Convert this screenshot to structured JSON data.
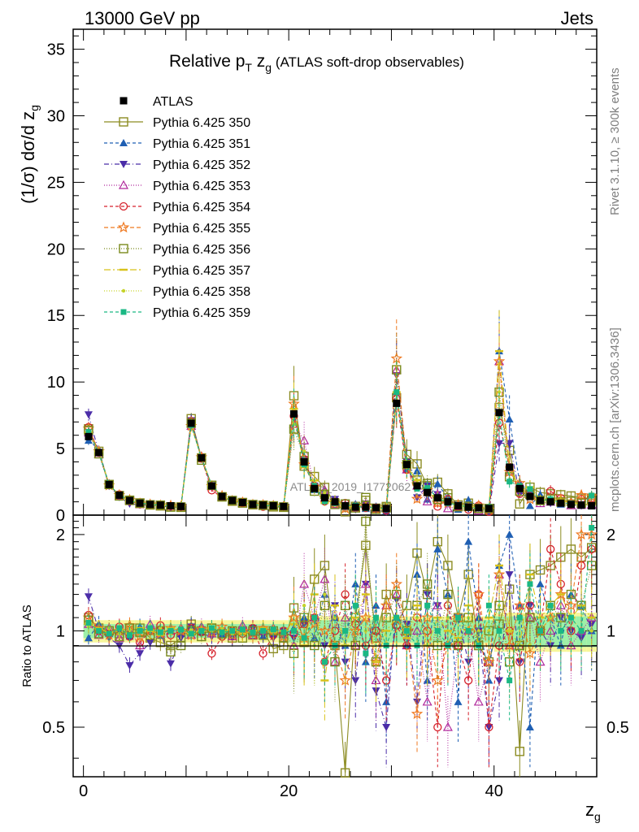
{
  "header": {
    "left": "13000 GeV pp",
    "right": "Jets"
  },
  "side_labels": {
    "rivet": "Rivet 3.1.10, ≥ 300k events",
    "mcplots": "mcplots.cern.ch [arXiv:1306.3436]"
  },
  "watermark": "ATLAS_2019_I1772062",
  "chart_data": {
    "type": "scatter",
    "title": "Relative p_T z_g (ATLAS soft-drop observables)",
    "title_parts": {
      "pre": "Relative p",
      "sub1": "T",
      "mid": " z",
      "sub2": "g",
      "post": " (ATLAS soft-drop observables)"
    },
    "xlabel": "z_g",
    "xlabel_parts": {
      "main": "z",
      "sub": "g"
    },
    "ylabel": "(1/σ) dσ/d z_g",
    "ylabel_parts": {
      "main": "(1/σ) dσ/d z",
      "sub": "g"
    },
    "ratio_ylabel": "Ratio to ATLAS",
    "xlim": [
      -1,
      50
    ],
    "ylim": [
      0,
      36.5
    ],
    "ratio_ylim": [
      0.35,
      2.3
    ],
    "xticks": [
      "0",
      "20",
      "40"
    ],
    "yticks": [
      "0",
      "5",
      "10",
      "15",
      "20",
      "25",
      "30",
      "35"
    ],
    "ratio_yticks": [
      "0.5",
      "1",
      "2"
    ],
    "legend_position": "top-left",
    "reference": {
      "name": "ATLAS",
      "x": [
        0.5,
        1.5,
        2.5,
        3.5,
        4.5,
        5.5,
        6.5,
        7.5,
        8.5,
        9.5,
        10.5,
        11.5,
        12.5,
        13.5,
        14.5,
        15.5,
        16.5,
        17.5,
        18.5,
        19.5,
        20.5,
        21.5,
        22.5,
        23.5,
        24.5,
        25.5,
        26.5,
        27.5,
        28.5,
        29.5,
        30.5,
        31.5,
        32.5,
        33.5,
        34.5,
        35.5,
        36.5,
        37.5,
        38.5,
        39.5,
        40.5,
        41.5,
        42.5,
        43.5,
        44.5,
        45.5,
        46.5,
        47.5,
        48.5,
        49.5
      ],
      "y": [
        5.9,
        4.7,
        2.3,
        1.5,
        1.1,
        0.9,
        0.8,
        0.75,
        0.7,
        0.65,
        6.9,
        4.3,
        2.2,
        1.4,
        1.1,
        0.95,
        0.8,
        0.75,
        0.7,
        0.65,
        7.6,
        4.0,
        2.0,
        1.3,
        1.0,
        0.7,
        0.6,
        0.6,
        0.55,
        0.5,
        8.4,
        3.8,
        2.2,
        1.7,
        1.3,
        1.0,
        0.7,
        0.6,
        0.55,
        0.5,
        7.7,
        3.6,
        2.0,
        1.4,
        1.1,
        1.0,
        0.9,
        0.8,
        0.75,
        0.7
      ]
    },
    "series": [
      {
        "name": "Pythia 6.425 350",
        "color": "#8c8c22",
        "marker": "open-square",
        "dash": "",
        "ratio": [
          1.1,
          1.02,
          1.0,
          0.98,
          1.0,
          1.02,
          0.95,
          0.92,
          0.9,
          0.95,
          1.05,
          1.0,
          1.02,
          0.98,
          0.95,
          1.0,
          0.97,
          1.0,
          0.88,
          0.9,
          1.18,
          0.92,
          1.45,
          1.6,
          0.9,
          0.36,
          1.1,
          1.85,
          0.95,
          1.3,
          1.05,
          1.2,
          1.75,
          1.3,
          1.9,
          1.6,
          1.1,
          1.5,
          0.9,
          0.8,
          1.05,
          1.35,
          0.42,
          1.5,
          1.55,
          1.6,
          1.7,
          1.8,
          1.7,
          1.82
        ]
      },
      {
        "name": "Pythia 6.425 351",
        "color": "#1f5fb3",
        "marker": "triangle-up",
        "dash": "4,3",
        "ratio": [
          0.95,
          1.05,
          0.98,
          1.0,
          0.96,
          1.03,
          1.0,
          0.97,
          1.02,
          0.98,
          1.04,
          0.99,
          1.01,
          0.97,
          1.0,
          1.02,
          0.98,
          0.96,
          1.0,
          0.97,
          1.02,
          1.1,
          0.95,
          1.3,
          1.1,
          0.9,
          1.4,
          0.8,
          1.2,
          0.6,
          1.1,
          0.9,
          1.5,
          0.7,
          1.8,
          1.3,
          0.6,
          1.9,
          1.1,
          0.7,
          1.6,
          2.0,
          1.2,
          0.5,
          1.4,
          1.1,
          0.9,
          1.3,
          1.2,
          1.0
        ]
      },
      {
        "name": "Pythia 6.425 352",
        "color": "#4b2da8",
        "marker": "triangle-down",
        "dash": "6,3,1,3",
        "ratio": [
          1.28,
          1.0,
          0.95,
          0.9,
          0.78,
          0.85,
          0.92,
          1.0,
          0.79,
          0.95,
          1.03,
          0.98,
          0.96,
          1.0,
          0.95,
          0.99,
          1.02,
          0.97,
          0.95,
          1.0,
          0.95,
          1.05,
          1.1,
          0.9,
          1.2,
          0.8,
          0.7,
          1.4,
          0.65,
          0.5,
          1.25,
          1.05,
          0.6,
          1.3,
          1.2,
          0.9,
          1.1,
          0.8,
          1.0,
          0.5,
          0.7,
          1.5,
          0.8,
          1.2,
          1.0,
          0.9,
          1.1,
          1.0,
          0.95,
          1.05
        ]
      },
      {
        "name": "Pythia 6.425 353",
        "color": "#b0289c",
        "marker": "open-triangle-up",
        "dash": "1,2",
        "ratio": [
          1.05,
          0.97,
          1.02,
          0.95,
          1.0,
          0.9,
          1.05,
          0.98,
          1.0,
          1.02,
          0.97,
          1.03,
          0.98,
          1.0,
          0.96,
          1.04,
          0.97,
          1.0,
          1.02,
          0.98,
          0.9,
          1.4,
          1.1,
          1.45,
          0.8,
          1.1,
          0.9,
          1.4,
          0.7,
          1.2,
          1.3,
          0.9,
          1.0,
          0.6,
          1.2,
          0.5,
          0.9,
          1.0,
          0.6,
          0.8,
          1.5,
          0.9,
          1.2,
          1.1,
          0.8,
          1.0,
          1.2,
          0.9,
          1.0,
          1.1
        ]
      },
      {
        "name": "Pythia 6.425 354",
        "color": "#d6222c",
        "marker": "open-circle",
        "dash": "4,3",
        "ratio": [
          1.12,
          1.0,
          0.98,
          1.03,
          0.96,
          0.92,
          1.0,
          1.04,
          0.97,
          1.0,
          1.02,
          0.99,
          0.85,
          0.96,
          1.0,
          0.98,
          1.02,
          0.85,
          0.97,
          1.0,
          0.98,
          1.05,
          1.1,
          0.8,
          1.0,
          1.3,
          1.05,
          0.9,
          1.0,
          0.7,
          1.04,
          0.9,
          1.1,
          1.0,
          0.5,
          1.2,
          0.9,
          0.7,
          1.3,
          0.5,
          0.9,
          1.0,
          0.8,
          1.2,
          1.0,
          1.8,
          1.4,
          1.0,
          1.6,
          1.8
        ]
      },
      {
        "name": "Pythia 6.425 355",
        "color": "#ef7a22",
        "marker": "open-star",
        "dash": "5,3",
        "ratio": [
          1.1,
          1.02,
          0.97,
          1.0,
          1.04,
          0.96,
          1.0,
          0.98,
          1.02,
          1.0,
          0.97,
          1.01,
          0.99,
          1.03,
          0.97,
          1.0,
          0.98,
          1.02,
          1.0,
          0.96,
          1.1,
          0.95,
          1.05,
          1.0,
          0.9,
          0.7,
          1.0,
          1.1,
          0.8,
          1.2,
          1.4,
          1.0,
          0.55,
          1.1,
          0.7,
          0.9,
          1.1,
          1.0,
          1.3,
          0.8,
          1.5,
          0.9,
          1.2,
          0.85,
          1.0,
          1.1,
          1.3,
          1.2,
          2.0,
          2.0
        ]
      },
      {
        "name": "Pythia 6.425 356",
        "color": "#7a8a1c",
        "marker": "open-square",
        "dash": "1,2",
        "ratio": [
          1.08,
          0.98,
          1.0,
          0.96,
          1.02,
          0.99,
          0.97,
          1.0,
          0.86,
          0.9,
          1.0,
          0.96,
          1.02,
          0.98,
          1.0,
          0.95,
          1.0,
          0.97,
          1.0,
          0.95,
          0.85,
          1.1,
          0.9,
          1.2,
          0.8,
          1.2,
          0.9,
          2.2,
          0.8,
          1.1,
          1.3,
          1.0,
          1.2,
          1.4,
          0.9,
          1.3,
          0.9,
          1.1,
          0.9,
          1.0,
          1.2,
          0.8,
          0.9,
          1.1,
          1.0,
          1.2,
          1.1,
          1.3,
          1.2,
          1.6
        ]
      },
      {
        "name": "Pythia 6.425 357",
        "color": "#d8c21a",
        "marker": "dash",
        "dash": "8,3,2,3",
        "ratio": [
          1.05,
          1.02,
          0.99,
          1.01,
          0.98,
          1.02,
          1.0,
          0.97,
          1.02,
          1.0,
          0.98,
          1.0,
          1.02,
          0.99,
          1.01,
          0.98,
          1.0,
          1.02,
          0.99,
          1.0,
          1.05,
          0.9,
          1.3,
          0.7,
          1.2,
          0.9,
          1.1,
          1.3,
          0.8,
          1.0,
          1.1,
          0.95,
          1.2,
          0.9,
          1.1,
          1.0,
          0.95,
          1.2,
          0.9,
          1.1,
          1.6,
          1.0,
          0.9,
          1.5,
          1.1,
          1.2,
          1.3,
          1.1,
          1.2,
          1.1
        ]
      },
      {
        "name": "Pythia 6.425 358",
        "color": "#c6d32a",
        "marker": "dot",
        "dash": "1,2",
        "ratio": [
          1.03,
          1.0,
          1.02,
          0.98,
          1.01,
          0.99,
          1.0,
          1.02,
          0.98,
          1.0,
          1.01,
          0.99,
          1.0,
          1.02,
          0.98,
          1.0,
          0.99,
          1.01,
          1.0,
          0.99,
          0.9,
          1.2,
          0.9,
          1.3,
          1.1,
          0.9,
          1.2,
          1.0,
          1.1,
          0.9,
          1.1,
          1.0,
          1.1,
          0.9,
          1.0,
          1.1,
          0.9,
          1.1,
          1.0,
          1.0,
          1.2,
          1.0,
          1.1,
          0.9,
          1.0,
          1.1,
          1.0,
          1.1,
          1.0,
          1.0
        ]
      },
      {
        "name": "Pythia 6.425 359",
        "color": "#1ab884",
        "marker": "filled-square",
        "dash": "4,3",
        "ratio": [
          1.06,
          1.0,
          0.98,
          1.02,
          0.97,
          1.0,
          1.02,
          0.99,
          1.0,
          1.01,
          0.98,
          1.0,
          1.02,
          0.99,
          1.0,
          1.01,
          0.99,
          1.0,
          1.01,
          0.99,
          1.0,
          0.95,
          1.1,
          0.8,
          0.9,
          1.0,
          1.2,
          0.85,
          1.1,
          0.9,
          1.1,
          1.0,
          0.9,
          1.2,
          1.0,
          0.9,
          1.1,
          1.0,
          0.9,
          1.2,
          1.0,
          0.7,
          1.1,
          1.4,
          1.0,
          1.2,
          1.0,
          1.1,
          1.0,
          2.1
        ]
      }
    ]
  }
}
